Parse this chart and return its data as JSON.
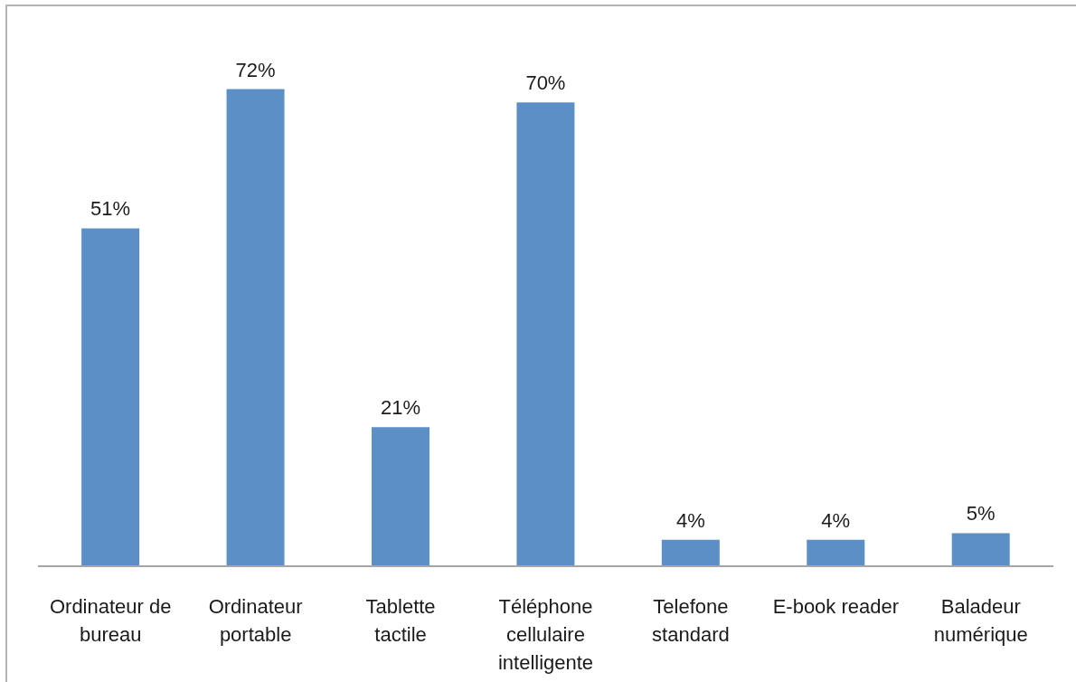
{
  "chart_data": {
    "type": "bar",
    "categories": [
      "Ordinateur de bureau",
      "Ordinateur portable",
      "Tablette tactile",
      "Téléphone cellulaire intelligente",
      "Telefone standard",
      "E-book reader",
      "Baladeur numérique"
    ],
    "values": [
      51,
      72,
      21,
      70,
      4,
      4,
      5
    ],
    "value_labels": [
      "51%",
      "72%",
      "21%",
      "70%",
      "4%",
      "4%",
      "5%"
    ],
    "color": "#5b8fc6",
    "grid": false,
    "legend": false
  }
}
